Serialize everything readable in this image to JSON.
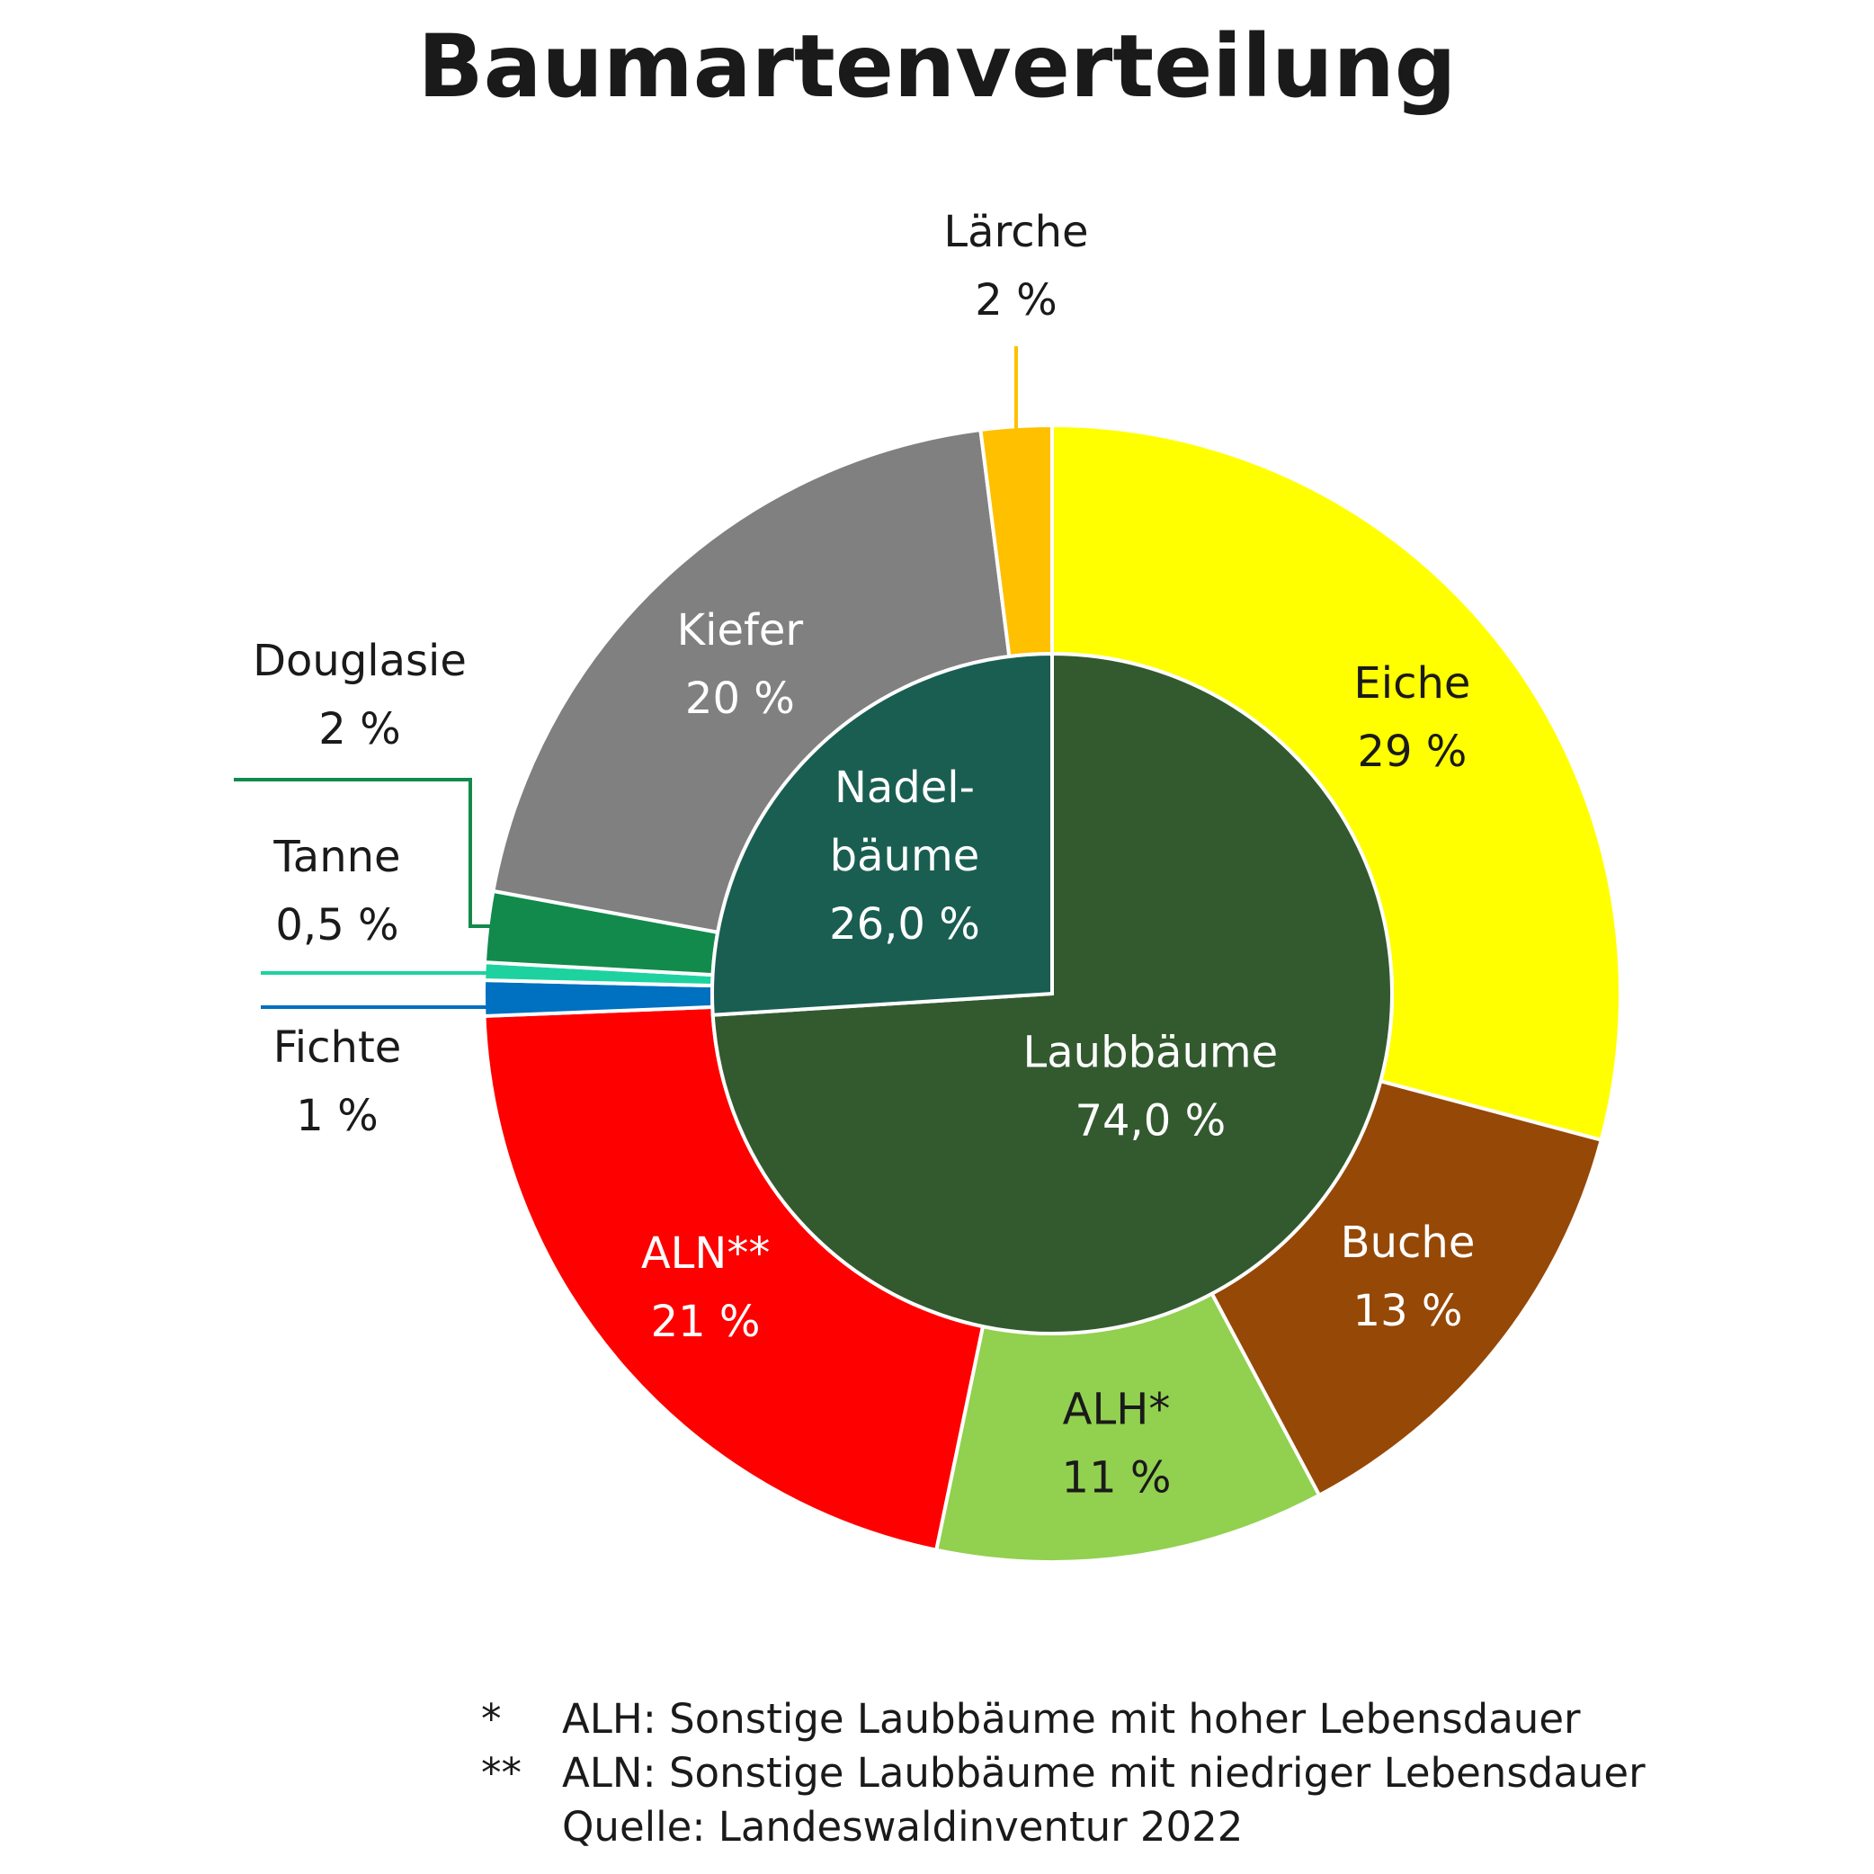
{
  "chart_data": {
    "type": "pie",
    "title": "Baumartenverteilung",
    "inner": [
      {
        "label": "Laubbäume",
        "value_text": "74,0 %",
        "value": 74.0,
        "color": "#335a2f",
        "text_color": "#ffffff"
      },
      {
        "label": "Nadel-",
        "label2": "bäume",
        "value_text": "26,0 %",
        "value": 26.0,
        "color": "#1a5e52",
        "text_color": "#ffffff"
      }
    ],
    "outer": [
      {
        "label": "Eiche",
        "value_text": "29 %",
        "value": 29,
        "color": "#ffff00",
        "text_color": "#1a1a1a"
      },
      {
        "label": "Buche",
        "value_text": "13 %",
        "value": 13,
        "color": "#964806",
        "text_color": "#ffffff"
      },
      {
        "label": "ALH*",
        "value_text": "11 %",
        "value": 11,
        "color": "#92d050",
        "text_color": "#1a1a1a"
      },
      {
        "label": "ALN**",
        "value_text": "21 %",
        "value": 21,
        "color": "#ff0000",
        "text_color": "#ffffff"
      },
      {
        "label": "Fichte",
        "value_text": "1 %",
        "value": 1,
        "color": "#0070c0",
        "text_color": "#1a1a1a"
      },
      {
        "label": "Tanne",
        "value_text": "0,5 %",
        "value": 0.5,
        "color": "#1ed2a0",
        "text_color": "#1a1a1a"
      },
      {
        "label": "Douglasie",
        "value_text": "2 %",
        "value": 2,
        "color": "#128a4c",
        "text_color": "#1a1a1a"
      },
      {
        "label": "Kiefer",
        "value_text": "20 %",
        "value": 20,
        "color": "#808080",
        "text_color": "#ffffff"
      },
      {
        "label": "Lärche",
        "value_text": "2 %",
        "value": 2,
        "color": "#ffc000",
        "text_color": "#1a1a1a"
      }
    ]
  },
  "footnotes": [
    {
      "mark": "*",
      "text": "ALH: Sonstige Laubbäume mit hoher Lebensdauer"
    },
    {
      "mark": "**",
      "text": "ALN: Sonstige Laubbäume mit niedriger Lebensdauer"
    },
    {
      "mark": "",
      "text": "Quelle: Landeswaldinventur 2022"
    }
  ]
}
